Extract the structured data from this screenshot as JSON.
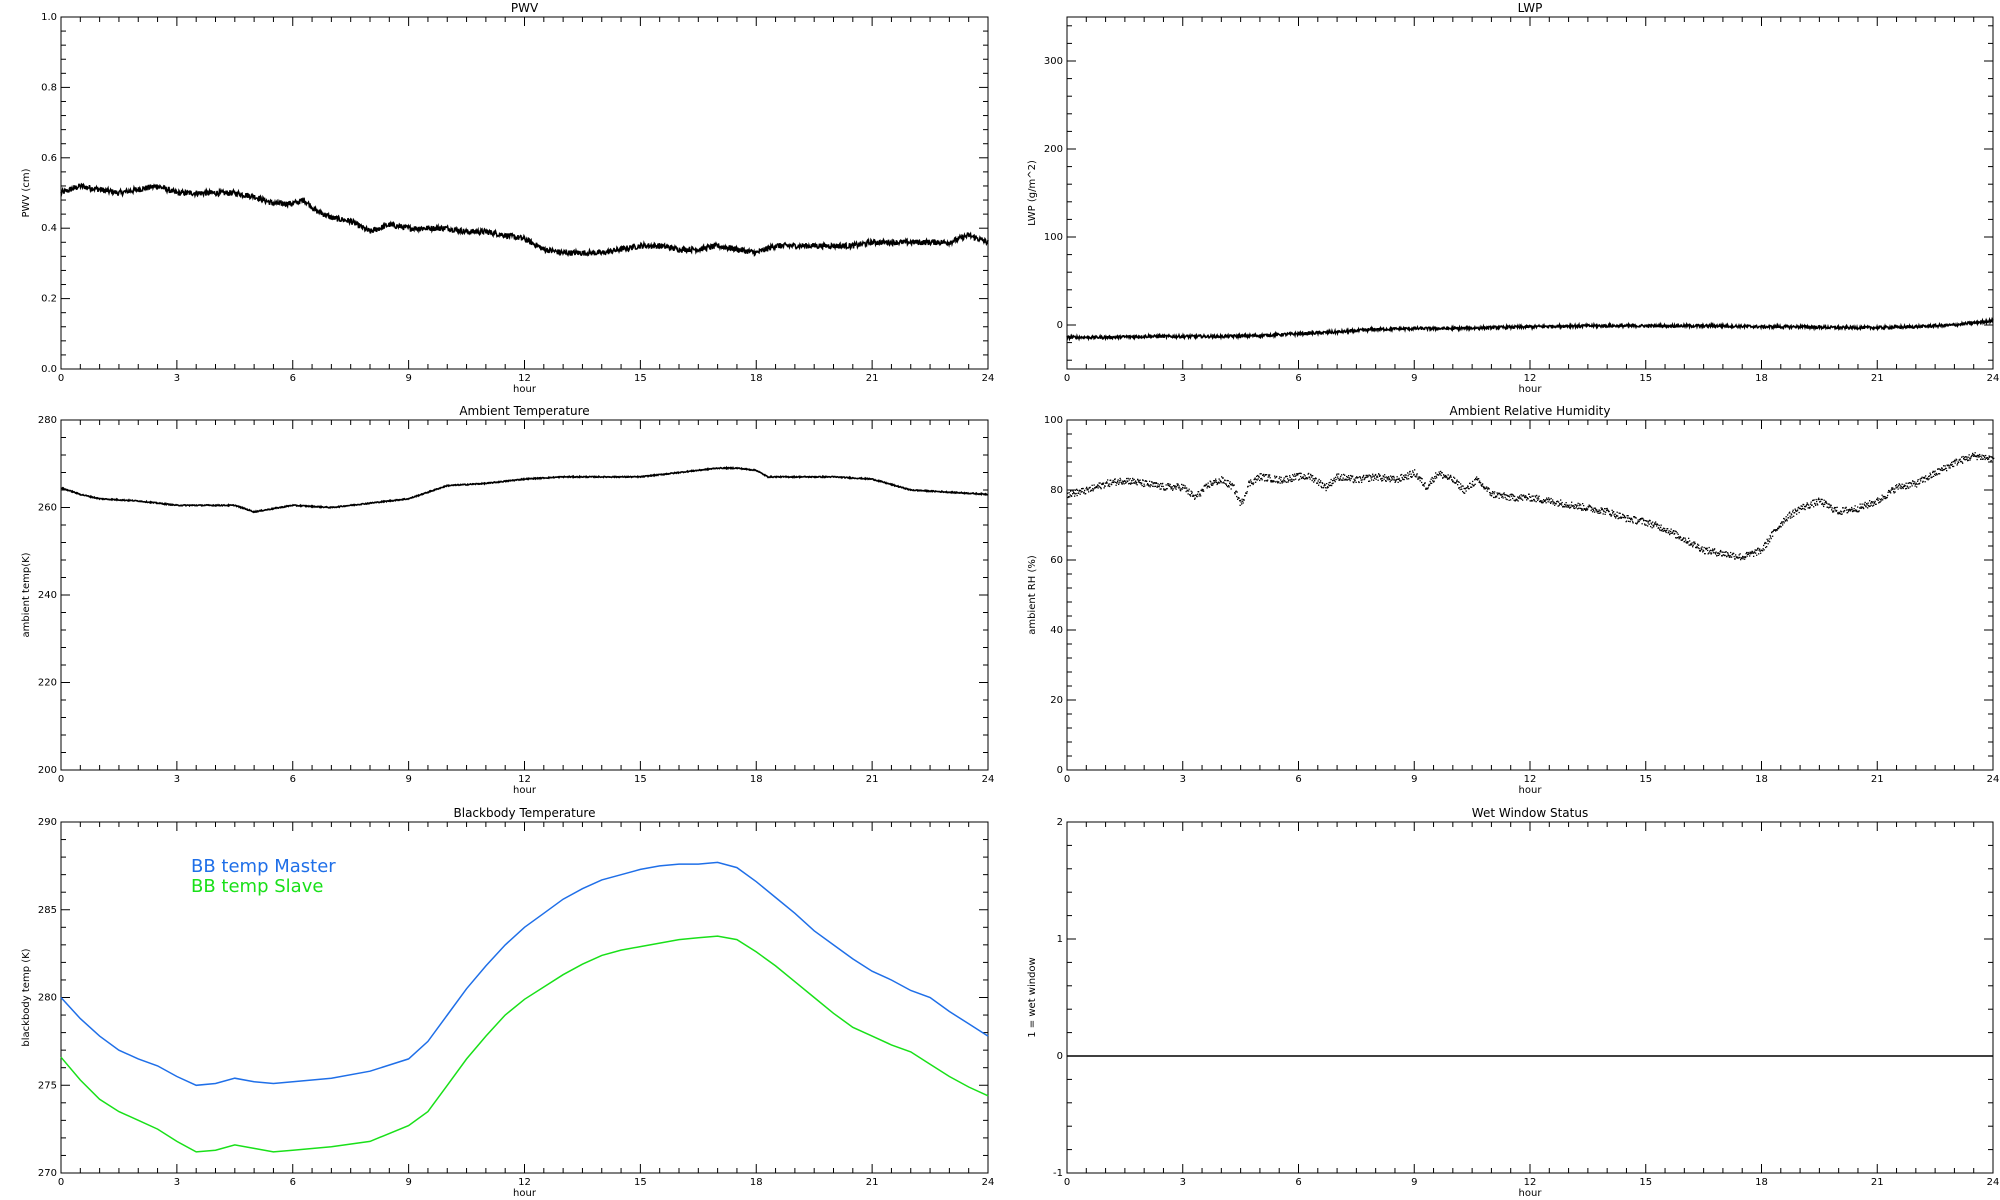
{
  "chart_data": [
    {
      "id": "pwv",
      "type": "line",
      "title": "PWV",
      "xlabel": "hour",
      "ylabel": "PWV (cm)",
      "xlim": [
        0,
        24
      ],
      "ylim": [
        0,
        1.0
      ],
      "xticks": [
        0,
        3,
        6,
        9,
        12,
        15,
        18,
        21,
        24
      ],
      "yticks": [
        0.0,
        0.2,
        0.4,
        0.6,
        0.8,
        1.0
      ],
      "yticklabels": [
        "0.0",
        "0.2",
        "0.4",
        "0.6",
        "0.8",
        "1.0"
      ],
      "noise": 0.008,
      "series": [
        {
          "color": "#000000",
          "x": [
            0,
            0.5,
            1,
            1.5,
            2,
            2.5,
            3,
            3.5,
            4,
            4.5,
            5,
            5.5,
            6,
            6.3,
            6.6,
            7,
            7.5,
            8,
            8.5,
            9,
            9.5,
            10,
            10.5,
            11,
            11.5,
            12,
            12.5,
            13,
            13.5,
            14,
            14.5,
            15,
            15.5,
            16,
            16.5,
            17,
            17.5,
            18,
            18.5,
            19,
            19.5,
            20,
            20.5,
            21,
            21.5,
            22,
            22.5,
            23,
            23.5,
            24
          ],
          "y": [
            0.5,
            0.52,
            0.51,
            0.5,
            0.51,
            0.52,
            0.5,
            0.5,
            0.5,
            0.5,
            0.49,
            0.47,
            0.47,
            0.48,
            0.45,
            0.43,
            0.42,
            0.39,
            0.41,
            0.4,
            0.4,
            0.4,
            0.39,
            0.39,
            0.38,
            0.37,
            0.34,
            0.33,
            0.33,
            0.33,
            0.34,
            0.35,
            0.35,
            0.34,
            0.34,
            0.35,
            0.34,
            0.33,
            0.35,
            0.35,
            0.35,
            0.35,
            0.35,
            0.36,
            0.36,
            0.36,
            0.36,
            0.36,
            0.38,
            0.36
          ]
        }
      ]
    },
    {
      "id": "lwp",
      "type": "line",
      "title": "LWP",
      "xlabel": "hour",
      "ylabel": "LWP (g/m^2)",
      "xlim": [
        0,
        24
      ],
      "ylim": [
        -50,
        350
      ],
      "xticks": [
        0,
        3,
        6,
        9,
        12,
        15,
        18,
        21,
        24
      ],
      "yticks": [
        0,
        100,
        200,
        300
      ],
      "yticklabels": [
        "0",
        "100",
        "200",
        "300"
      ],
      "noise": 1.6,
      "series": [
        {
          "color": "#000000",
          "x": [
            0,
            1,
            2,
            3,
            4,
            5,
            6,
            7,
            8,
            9,
            10,
            11,
            12,
            13,
            14,
            15,
            16,
            17,
            18,
            19,
            20,
            21,
            22,
            23,
            24
          ],
          "y": [
            -14,
            -14,
            -13,
            -13,
            -13,
            -12,
            -10,
            -8,
            -5,
            -4,
            -4,
            -3,
            -2,
            -1,
            -1,
            -1,
            -1,
            -1,
            -2,
            -2,
            -3,
            -3,
            -2,
            0,
            5
          ]
        }
      ]
    },
    {
      "id": "ambient_temp",
      "type": "line",
      "title": "Ambient Temperature",
      "xlabel": "hour",
      "ylabel": "ambient temp(K)",
      "xlim": [
        0,
        24
      ],
      "ylim": [
        200,
        280
      ],
      "xticks": [
        0,
        3,
        6,
        9,
        12,
        15,
        18,
        21,
        24
      ],
      "yticks": [
        200,
        220,
        240,
        260,
        280
      ],
      "yticklabels": [
        "200",
        "220",
        "240",
        "260",
        "280"
      ],
      "noise": 0.12,
      "series": [
        {
          "color": "#000000",
          "x": [
            0,
            0.5,
            1,
            2,
            3,
            4,
            4.5,
            5,
            6,
            7,
            8,
            9,
            9.5,
            10,
            11,
            12,
            13,
            14,
            15,
            16,
            17,
            17.5,
            18,
            18.3,
            19,
            20,
            21,
            22,
            23,
            24
          ],
          "y": [
            264.5,
            263,
            262,
            261.5,
            260.5,
            260.5,
            260.5,
            259,
            260.5,
            260,
            261,
            262,
            263.5,
            265,
            265.5,
            266.5,
            267,
            267,
            267,
            268,
            269,
            269,
            268.5,
            267,
            267,
            267,
            266.5,
            264,
            263.5,
            263
          ]
        }
      ]
    },
    {
      "id": "ambient_rh",
      "type": "scatter",
      "title": "Ambient Relative Humidity",
      "xlabel": "hour",
      "ylabel": "ambient RH (%)",
      "xlim": [
        0,
        24
      ],
      "ylim": [
        0,
        100
      ],
      "xticks": [
        0,
        3,
        6,
        9,
        12,
        15,
        18,
        21,
        24
      ],
      "yticks": [
        0,
        20,
        40,
        60,
        80,
        100
      ],
      "yticklabels": [
        "0",
        "20",
        "40",
        "60",
        "80",
        "100"
      ],
      "noise": 1.0,
      "series": [
        {
          "color": "#000000",
          "x": [
            0,
            0.5,
            1,
            1.5,
            2,
            2.5,
            3,
            3.3,
            3.7,
            4,
            4.3,
            4.5,
            4.7,
            5,
            5.5,
            6,
            6.3,
            6.7,
            7,
            7.5,
            8,
            8.5,
            9,
            9.3,
            9.6,
            10,
            10.3,
            10.6,
            11,
            11.5,
            12,
            12.5,
            13,
            13.5,
            14,
            14.5,
            15,
            15.5,
            16,
            16.5,
            17,
            17.5,
            18,
            18.3,
            18.6,
            19,
            19.5,
            19.8,
            20,
            20.5,
            21,
            21.5,
            22,
            22.5,
            23,
            23.5,
            24
          ],
          "y": [
            79,
            80,
            82,
            83,
            82,
            81,
            81,
            78,
            82,
            83,
            81,
            76,
            82,
            84,
            83,
            84,
            84,
            81,
            84,
            83,
            84,
            83,
            85,
            81,
            85,
            83,
            80,
            83,
            79,
            78,
            78,
            77,
            76,
            75,
            74,
            72,
            71,
            69,
            66,
            63,
            62,
            61,
            63,
            68,
            72,
            75,
            77,
            75,
            74,
            75,
            77,
            81,
            82,
            85,
            88,
            90,
            89
          ]
        }
      ]
    },
    {
      "id": "bb_temp",
      "type": "line",
      "title": "Blackbody Temperature",
      "xlabel": "hour",
      "ylabel": "blackbody temp (K)",
      "xlim": [
        0,
        24
      ],
      "ylim": [
        270,
        290
      ],
      "xticks": [
        0,
        3,
        6,
        9,
        12,
        15,
        18,
        21,
        24
      ],
      "yticks": [
        270,
        275,
        280,
        285,
        290
      ],
      "yticklabels": [
        "270",
        "275",
        "280",
        "285",
        "290"
      ],
      "noise": 0,
      "legend": "top-left",
      "series": [
        {
          "name": "BB temp Master",
          "color": "#1f6fe8",
          "x": [
            0,
            0.5,
            1,
            1.5,
            2,
            2.5,
            3,
            3.5,
            4,
            4.5,
            5,
            5.5,
            6,
            7,
            8,
            9,
            9.5,
            10,
            10.5,
            11,
            11.5,
            12,
            12.5,
            13,
            13.5,
            14,
            14.5,
            15,
            15.5,
            16,
            16.5,
            17,
            17.5,
            18,
            18.5,
            19,
            19.5,
            20,
            20.5,
            21,
            21.5,
            22,
            22.5,
            23,
            23.5,
            24
          ],
          "y": [
            280,
            278.8,
            277.8,
            277,
            276.5,
            276.1,
            275.5,
            275,
            275.1,
            275.4,
            275.2,
            275.1,
            275.2,
            275.4,
            275.8,
            276.5,
            277.5,
            279,
            280.5,
            281.8,
            283,
            284,
            284.8,
            285.6,
            286.2,
            286.7,
            287,
            287.3,
            287.5,
            287.6,
            287.6,
            287.7,
            287.4,
            286.6,
            285.7,
            284.8,
            283.8,
            283,
            282.2,
            281.5,
            281,
            280.4,
            280,
            279.2,
            278.5,
            277.8
          ]
        },
        {
          "name": "BB temp Slave",
          "color": "#19e019",
          "x": [
            0,
            0.5,
            1,
            1.5,
            2,
            2.5,
            3,
            3.5,
            4,
            4.5,
            5,
            5.5,
            6,
            7,
            8,
            9,
            9.5,
            10,
            10.5,
            11,
            11.5,
            12,
            12.5,
            13,
            13.5,
            14,
            14.5,
            15,
            15.5,
            16,
            16.5,
            17,
            17.5,
            18,
            18.5,
            19,
            19.5,
            20,
            20.5,
            21,
            21.5,
            22,
            22.5,
            23,
            23.5,
            24
          ],
          "y": [
            276.6,
            275.3,
            274.2,
            273.5,
            273,
            272.5,
            271.8,
            271.2,
            271.3,
            271.6,
            271.4,
            271.2,
            271.3,
            271.5,
            271.8,
            272.7,
            273.5,
            275,
            276.5,
            277.8,
            279,
            279.9,
            280.6,
            281.3,
            281.9,
            282.4,
            282.7,
            282.9,
            283.1,
            283.3,
            283.4,
            283.5,
            283.3,
            282.6,
            281.8,
            280.9,
            280,
            279.1,
            278.3,
            277.8,
            277.3,
            276.9,
            276.2,
            275.5,
            274.9,
            274.4
          ]
        }
      ]
    },
    {
      "id": "wet_window",
      "type": "line",
      "title": "Wet Window Status",
      "xlabel": "hour",
      "ylabel": "1 = wet window",
      "xlim": [
        0,
        24
      ],
      "ylim": [
        -1,
        2
      ],
      "xticks": [
        0,
        3,
        6,
        9,
        12,
        15,
        18,
        21,
        24
      ],
      "yticks": [
        -1,
        0,
        1,
        2
      ],
      "yticklabels": [
        "-1",
        "0",
        "1",
        "2"
      ],
      "noise": 0,
      "series": [
        {
          "color": "#000000",
          "x": [
            0,
            24
          ],
          "y": [
            0,
            0
          ]
        }
      ]
    }
  ]
}
